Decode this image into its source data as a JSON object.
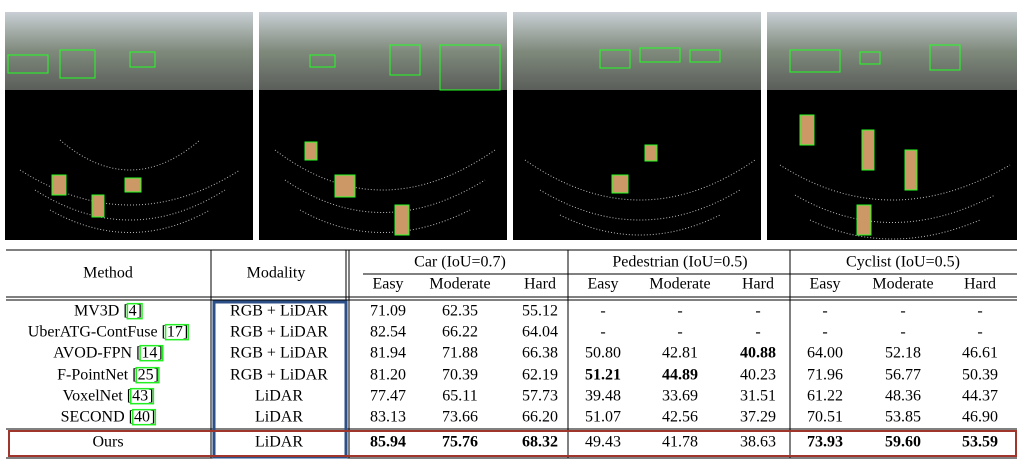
{
  "table": {
    "header": {
      "method": "Method",
      "modality": "Modality",
      "groups": [
        "Car (IoU=0.7)",
        "Pedestrian (IoU=0.5)",
        "Cyclist (IoU=0.5)"
      ],
      "levels": [
        "Easy",
        "Moderate",
        "Hard"
      ]
    },
    "rows": [
      {
        "method": "MV3D",
        "ref": "[4]",
        "modality": "RGB + LiDAR",
        "values": [
          "71.09",
          "62.35",
          "55.12",
          "-",
          "-",
          "-",
          "-",
          "-",
          "-"
        ]
      },
      {
        "method": "UberATG-ContFuse",
        "ref": "[17]",
        "modality": "RGB + LiDAR",
        "values": [
          "82.54",
          "66.22",
          "64.04",
          "-",
          "-",
          "-",
          "-",
          "-",
          "-"
        ]
      },
      {
        "method": "AVOD-FPN",
        "ref": "[14]",
        "modality": "RGB + LiDAR",
        "values": [
          "81.94",
          "71.88",
          "66.38",
          "50.80",
          "42.81",
          "40.88",
          "64.00",
          "52.18",
          "46.61"
        ],
        "bold": [
          5
        ]
      },
      {
        "method": "F-PointNet",
        "ref": "[25]",
        "modality": "RGB + LiDAR",
        "values": [
          "81.20",
          "70.39",
          "62.19",
          "51.21",
          "44.89",
          "40.23",
          "71.96",
          "56.77",
          "50.39"
        ],
        "bold": [
          3,
          4
        ]
      },
      {
        "method": "VoxelNet",
        "ref": "[43]",
        "modality": "LiDAR",
        "values": [
          "77.47",
          "65.11",
          "57.73",
          "39.48",
          "33.69",
          "31.51",
          "61.22",
          "48.36",
          "44.37"
        ]
      },
      {
        "method": "SECOND",
        "ref": "[40]",
        "modality": "LiDAR",
        "values": [
          "83.13",
          "73.66",
          "66.20",
          "51.07",
          "42.56",
          "37.29",
          "70.51",
          "53.85",
          "46.90"
        ]
      },
      {
        "method": "Ours",
        "modality": "LiDAR",
        "values": [
          "85.94",
          "75.76",
          "68.32",
          "49.43",
          "41.78",
          "38.63",
          "73.93",
          "59.60",
          "53.59"
        ],
        "bold": [
          0,
          1,
          2,
          6,
          7,
          8
        ]
      }
    ]
  }
}
